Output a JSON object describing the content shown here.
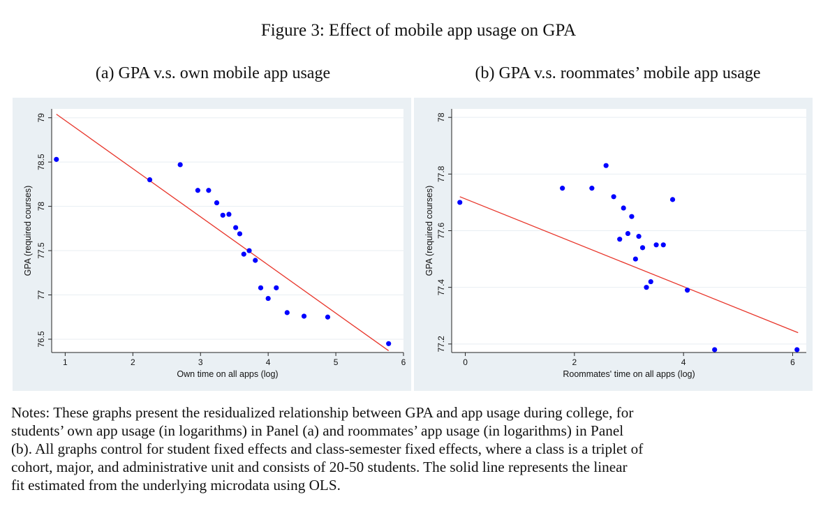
{
  "figure_title": "Figure 3: Effect of mobile app usage on GPA",
  "panels": [
    {
      "title": "(a) GPA v.s. own mobile app usage"
    },
    {
      "title": "(b) GPA v.s. roommates’ mobile app usage"
    }
  ],
  "notes_lines": [
    "Notes: These graphs present the residualized relationship between GPA and app usage during college, for",
    "students’ own app usage (in logarithms) in Panel (a) and roommates’ app usage (in logarithms) in Panel",
    "(b). All graphs control for student fixed effects and class-semester fixed effects, where a class is a triplet of",
    "cohort, major, and administrative unit and consists of 20-50 students. The solid line represents the linear",
    "fit estimated from the underlying microdata using OLS."
  ],
  "colors": {
    "points": "#0000ff",
    "fit_line": "#e8352a",
    "panel_bg": "#eaf0f4",
    "plot_bg": "#ffffff",
    "grid": "#e8eef2"
  },
  "chart_data": [
    {
      "type": "scatter",
      "xlabel": "Own time on all apps (log)",
      "ylabel": "GPA (required courses)",
      "xlim": [
        0.8,
        6.0
      ],
      "ylim": [
        76.35,
        79.1
      ],
      "xticks": [
        1,
        2,
        3,
        4,
        5,
        6
      ],
      "yticks": [
        76.5,
        77,
        77.5,
        78,
        78.5,
        79
      ],
      "ytick_labels": [
        "76.5",
        "77",
        "77.5",
        "78",
        "78.5",
        "79"
      ],
      "grid": true,
      "points": [
        {
          "x": 0.87,
          "y": 78.53
        },
        {
          "x": 2.25,
          "y": 78.3
        },
        {
          "x": 2.7,
          "y": 78.47
        },
        {
          "x": 2.96,
          "y": 78.18
        },
        {
          "x": 3.12,
          "y": 78.18
        },
        {
          "x": 3.24,
          "y": 78.04
        },
        {
          "x": 3.33,
          "y": 77.9
        },
        {
          "x": 3.42,
          "y": 77.91
        },
        {
          "x": 3.52,
          "y": 77.76
        },
        {
          "x": 3.58,
          "y": 77.69
        },
        {
          "x": 3.64,
          "y": 77.46
        },
        {
          "x": 3.72,
          "y": 77.5
        },
        {
          "x": 3.81,
          "y": 77.39
        },
        {
          "x": 3.89,
          "y": 77.08
        },
        {
          "x": 4.0,
          "y": 76.96
        },
        {
          "x": 4.12,
          "y": 77.08
        },
        {
          "x": 4.28,
          "y": 76.8
        },
        {
          "x": 4.53,
          "y": 76.76
        },
        {
          "x": 4.88,
          "y": 76.75
        },
        {
          "x": 5.78,
          "y": 76.45
        }
      ],
      "fit_line": {
        "x": [
          0.87,
          5.78
        ],
        "y": [
          79.04,
          76.37
        ]
      }
    },
    {
      "type": "scatter",
      "xlabel": "Roommates' time on all apps (log)",
      "ylabel": "GPA (required courses)",
      "xlim": [
        -0.25,
        6.25
      ],
      "ylim": [
        77.17,
        78.03
      ],
      "xticks": [
        0,
        2,
        4,
        6
      ],
      "yticks": [
        77.2,
        77.4,
        77.6,
        77.8,
        78
      ],
      "ytick_labels": [
        "77.2",
        "77.4",
        "77.6",
        "77.8",
        "78"
      ],
      "grid": true,
      "points": [
        {
          "x": -0.1,
          "y": 77.7
        },
        {
          "x": 1.78,
          "y": 77.75
        },
        {
          "x": 2.32,
          "y": 77.75
        },
        {
          "x": 2.58,
          "y": 77.83
        },
        {
          "x": 2.72,
          "y": 77.72
        },
        {
          "x": 2.83,
          "y": 77.57
        },
        {
          "x": 2.9,
          "y": 77.68
        },
        {
          "x": 2.98,
          "y": 77.59
        },
        {
          "x": 3.05,
          "y": 77.65
        },
        {
          "x": 3.12,
          "y": 77.5
        },
        {
          "x": 3.18,
          "y": 77.58
        },
        {
          "x": 3.25,
          "y": 77.54
        },
        {
          "x": 3.32,
          "y": 77.4
        },
        {
          "x": 3.4,
          "y": 77.42
        },
        {
          "x": 3.5,
          "y": 77.55
        },
        {
          "x": 3.63,
          "y": 77.55
        },
        {
          "x": 3.8,
          "y": 77.71
        },
        {
          "x": 4.07,
          "y": 77.39
        },
        {
          "x": 4.57,
          "y": 77.18
        },
        {
          "x": 6.08,
          "y": 77.18
        }
      ],
      "fit_line": {
        "x": [
          -0.1,
          6.1
        ],
        "y": [
          77.72,
          77.24
        ]
      }
    }
  ]
}
